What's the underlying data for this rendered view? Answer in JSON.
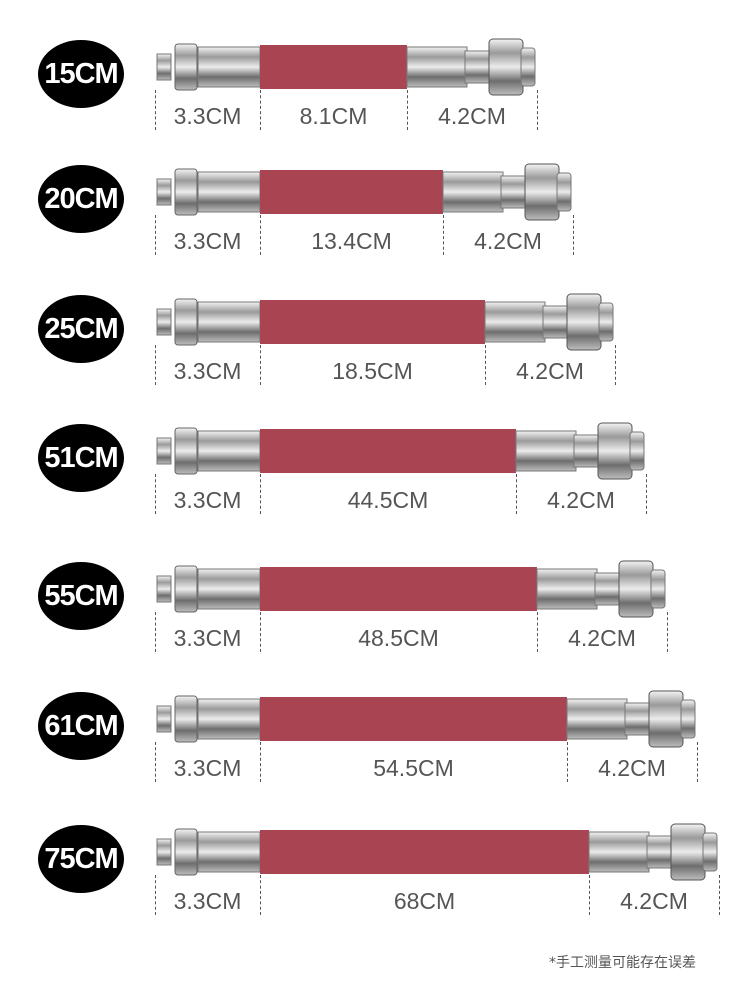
{
  "hose_color": "#a94452",
  "metal_color": "#c9c9c9",
  "badge_color": "#000000",
  "hoses": [
    {
      "size": "15CM",
      "segments": [
        "3.3CM",
        "8.1CM",
        "4.2CM"
      ]
    },
    {
      "size": "20CM",
      "segments": [
        "3.3CM",
        "13.4CM",
        "4.2CM"
      ]
    },
    {
      "size": "25CM",
      "segments": [
        "3.3CM",
        "18.5CM",
        "4.2CM"
      ]
    },
    {
      "size": "51CM",
      "segments": [
        "3.3CM",
        "44.5CM",
        "4.2CM"
      ]
    },
    {
      "size": "55CM",
      "segments": [
        "3.3CM",
        "48.5CM",
        "4.2CM"
      ]
    },
    {
      "size": "61CM",
      "segments": [
        "3.3CM",
        "54.5CM",
        "4.2CM"
      ]
    },
    {
      "size": "75CM",
      "segments": [
        "3.3CM",
        "68CM",
        "4.2CM"
      ]
    }
  ],
  "footnote": "*手工测量可能存在误差"
}
